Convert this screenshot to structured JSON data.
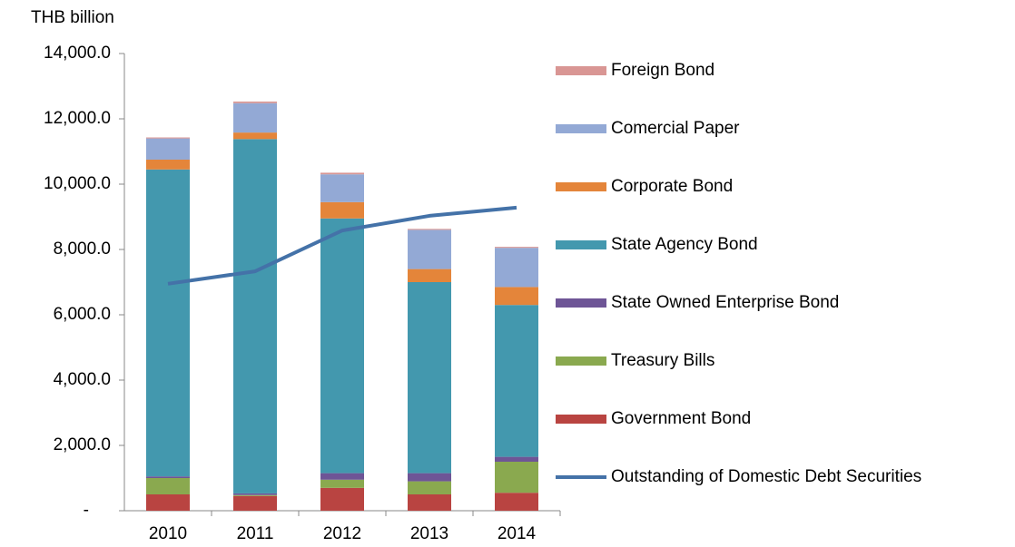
{
  "chart_data": {
    "type": "bar",
    "stacked": true,
    "y_axis_label": "THB billion",
    "categories": [
      "2010",
      "2011",
      "2012",
      "2013",
      "2014"
    ],
    "series": [
      {
        "name": "Government Bond",
        "color": "#b94441",
        "values": [
          500,
          450,
          700,
          500,
          550
        ]
      },
      {
        "name": "Treasury Bills",
        "color": "#8aa94f",
        "values": [
          500,
          30,
          250,
          400,
          950
        ]
      },
      {
        "name": "State Owned Enterprise Bond",
        "color": "#6e5596",
        "values": [
          50,
          50,
          200,
          250,
          150
        ]
      },
      {
        "name": "State Agency Bond",
        "color": "#4398ae",
        "values": [
          9400,
          10850,
          7800,
          5850,
          4650
        ]
      },
      {
        "name": "Corporate Bond",
        "color": "#e4853a",
        "values": [
          300,
          200,
          500,
          400,
          550
        ]
      },
      {
        "name": "Comercial Paper",
        "color": "#93a9d5",
        "values": [
          650,
          900,
          850,
          1200,
          1200
        ]
      },
      {
        "name": "Foreign Bond",
        "color": "#d99694",
        "values": [
          30,
          50,
          50,
          30,
          30
        ]
      },
      {
        "name": "Outstanding of Domestic Debt Securities",
        "type": "line",
        "color": "#4472a8",
        "values": [
          6950,
          7330,
          8580,
          9030,
          9280
        ]
      }
    ],
    "ylim": [
      0,
      14000
    ],
    "yticks": [
      {
        "value": 0,
        "label": "-"
      },
      {
        "value": 2000,
        "label": "2,000.0"
      },
      {
        "value": 4000,
        "label": "4,000.0"
      },
      {
        "value": 6000,
        "label": "6,000.0"
      },
      {
        "value": 8000,
        "label": "8,000.0"
      },
      {
        "value": 10000,
        "label": "10,000.0"
      },
      {
        "value": 12000,
        "label": "12,000.0"
      },
      {
        "value": 14000,
        "label": "14,000.0"
      }
    ],
    "legend": "right",
    "grid": false
  }
}
